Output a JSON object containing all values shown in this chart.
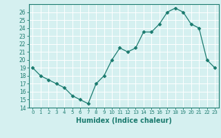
{
  "x": [
    0,
    1,
    2,
    3,
    4,
    5,
    6,
    7,
    8,
    9,
    10,
    11,
    12,
    13,
    14,
    15,
    16,
    17,
    18,
    19,
    20,
    21,
    22,
    23
  ],
  "y": [
    19,
    18,
    17.5,
    17,
    16.5,
    15.5,
    15,
    14.5,
    17,
    18,
    20,
    21.5,
    21,
    21.5,
    23.5,
    23.5,
    24.5,
    26,
    26.5,
    26,
    24.5,
    24,
    20,
    19
  ],
  "xlabel": "Humidex (Indice chaleur)",
  "xlim": [
    -0.5,
    23.5
  ],
  "ylim": [
    14,
    27
  ],
  "yticks": [
    14,
    15,
    16,
    17,
    18,
    19,
    20,
    21,
    22,
    23,
    24,
    25,
    26
  ],
  "xticks": [
    0,
    1,
    2,
    3,
    4,
    5,
    6,
    7,
    8,
    9,
    10,
    11,
    12,
    13,
    14,
    15,
    16,
    17,
    18,
    19,
    20,
    21,
    22,
    23
  ],
  "line_color": "#1a7a6e",
  "marker": "D",
  "marker_size": 2.5,
  "bg_color": "#d5f0f0",
  "grid_color": "#b0d8d8"
}
